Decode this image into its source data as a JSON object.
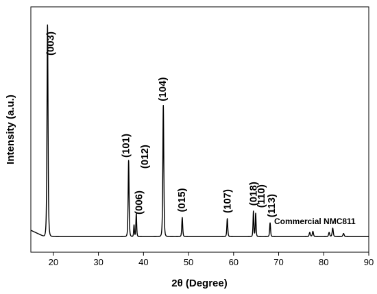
{
  "chart_data": {
    "type": "line",
    "xlabel": "2θ (Degree)",
    "ylabel": "Intensity (a.u.)",
    "xlim": [
      15,
      90
    ],
    "ylim": [
      0,
      1.05
    ],
    "xticks": [
      "20",
      "30",
      "40",
      "50",
      "60",
      "70",
      "80",
      "90"
    ],
    "xtick_values": [
      20,
      30,
      40,
      50,
      60,
      70,
      80,
      90
    ],
    "grid": false,
    "series": [
      {
        "name": "Commercial NMC811",
        "color": "#000000",
        "baseline": 0.025,
        "peaks": [
          {
            "label": "(003)",
            "x": 18.7,
            "y": 1.0,
            "w": 0.17
          },
          {
            "label": "(101)",
            "x": 36.7,
            "y": 0.36,
            "w": 0.15
          },
          {
            "label": "(006)",
            "x": 37.9,
            "y": 0.055,
            "w": 0.12
          },
          {
            "label": "(012)",
            "x": 38.4,
            "y": 0.11,
            "w": 0.13
          },
          {
            "label": "(104)",
            "x": 44.4,
            "y": 0.62,
            "w": 0.16
          },
          {
            "label": "(015)",
            "x": 48.6,
            "y": 0.09,
            "w": 0.15
          },
          {
            "label": "(107)",
            "x": 58.6,
            "y": 0.085,
            "w": 0.15
          },
          {
            "label": "(018)",
            "x": 64.4,
            "y": 0.12,
            "w": 0.13
          },
          {
            "label": "(110)",
            "x": 64.9,
            "y": 0.11,
            "w": 0.13
          },
          {
            "label": "(113)",
            "x": 68.1,
            "y": 0.065,
            "w": 0.15
          },
          {
            "label": "",
            "x": 76.9,
            "y": 0.02,
            "w": 0.18
          },
          {
            "label": "",
            "x": 77.6,
            "y": 0.025,
            "w": 0.18
          },
          {
            "label": "",
            "x": 81.2,
            "y": 0.02,
            "w": 0.18
          },
          {
            "label": "",
            "x": 82.0,
            "y": 0.04,
            "w": 0.18
          },
          {
            "label": "",
            "x": 84.4,
            "y": 0.015,
            "w": 0.2
          }
        ]
      }
    ],
    "series_label": "Commercial NMC811"
  }
}
